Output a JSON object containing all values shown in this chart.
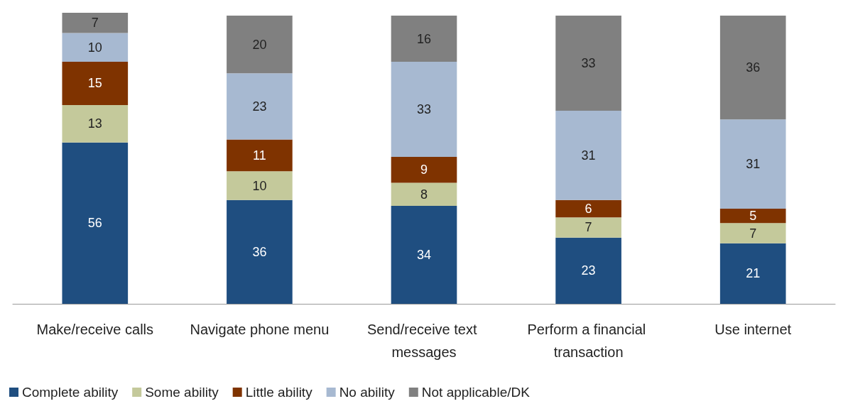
{
  "chart_data": {
    "type": "bar",
    "stacked": true,
    "data_labels": true,
    "legend": "bottom left",
    "grid": false,
    "categories": [
      "Make/receive calls",
      "Navigate phone menu",
      "Send/receive text messages",
      "Perform a financial transaction",
      "Use internet"
    ],
    "series": [
      {
        "name": "Complete ability",
        "color": "#1f4e80",
        "values": [
          56,
          36,
          34,
          23,
          21
        ]
      },
      {
        "name": "Some ability",
        "color": "#c4c99b",
        "values": [
          13,
          10,
          8,
          7,
          7
        ]
      },
      {
        "name": "Little ability",
        "color": "#7f3300",
        "values": [
          15,
          11,
          9,
          6,
          5
        ]
      },
      {
        "name": "No ability",
        "color": "#a7b9d1",
        "values": [
          10,
          23,
          33,
          31,
          31
        ]
      },
      {
        "name": "Not applicable/DK",
        "color": "#808080",
        "values": [
          7,
          20,
          16,
          33,
          36
        ]
      }
    ]
  }
}
